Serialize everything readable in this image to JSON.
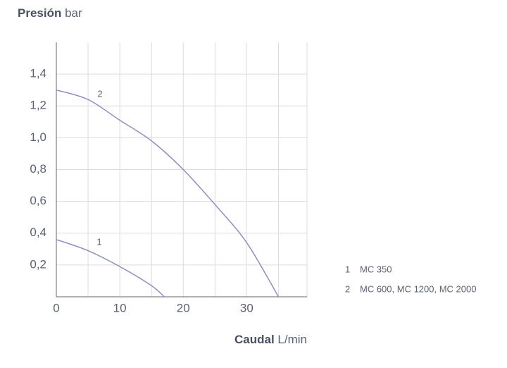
{
  "chart_data": {
    "type": "line",
    "y_label": "Presión",
    "y_unit": "bar",
    "x_label": "Caudal",
    "x_unit": "L/min",
    "xlim": [
      0,
      39.5
    ],
    "ylim": [
      0,
      1.6
    ],
    "xticks": [
      0,
      10,
      20,
      30
    ],
    "x_minor_ticks": [
      5,
      15,
      25,
      35
    ],
    "yticks": [
      {
        "value": 0.2,
        "label": "0,2"
      },
      {
        "value": 0.4,
        "label": "0,4"
      },
      {
        "value": 0.6,
        "label": "0,6"
      },
      {
        "value": 0.8,
        "label": "0,8"
      },
      {
        "value": 1.0,
        "label": "1,0"
      },
      {
        "value": 1.2,
        "label": "1,2"
      },
      {
        "value": 1.4,
        "label": "1,4"
      }
    ],
    "grid": true,
    "series": [
      {
        "label": "1",
        "name": "MC 350",
        "color": "#8c90c2",
        "x": [
          0,
          5,
          10,
          15,
          17
        ],
        "values": [
          0.36,
          0.29,
          0.19,
          0.07,
          0
        ]
      },
      {
        "label": "2",
        "name": "MC 600, MC 1200, MC 2000",
        "color": "#8c90c2",
        "x": [
          0,
          5,
          10,
          15,
          20,
          25,
          30,
          35
        ],
        "values": [
          1.3,
          1.24,
          1.11,
          0.98,
          0.8,
          0.58,
          0.34,
          0
        ]
      }
    ]
  }
}
